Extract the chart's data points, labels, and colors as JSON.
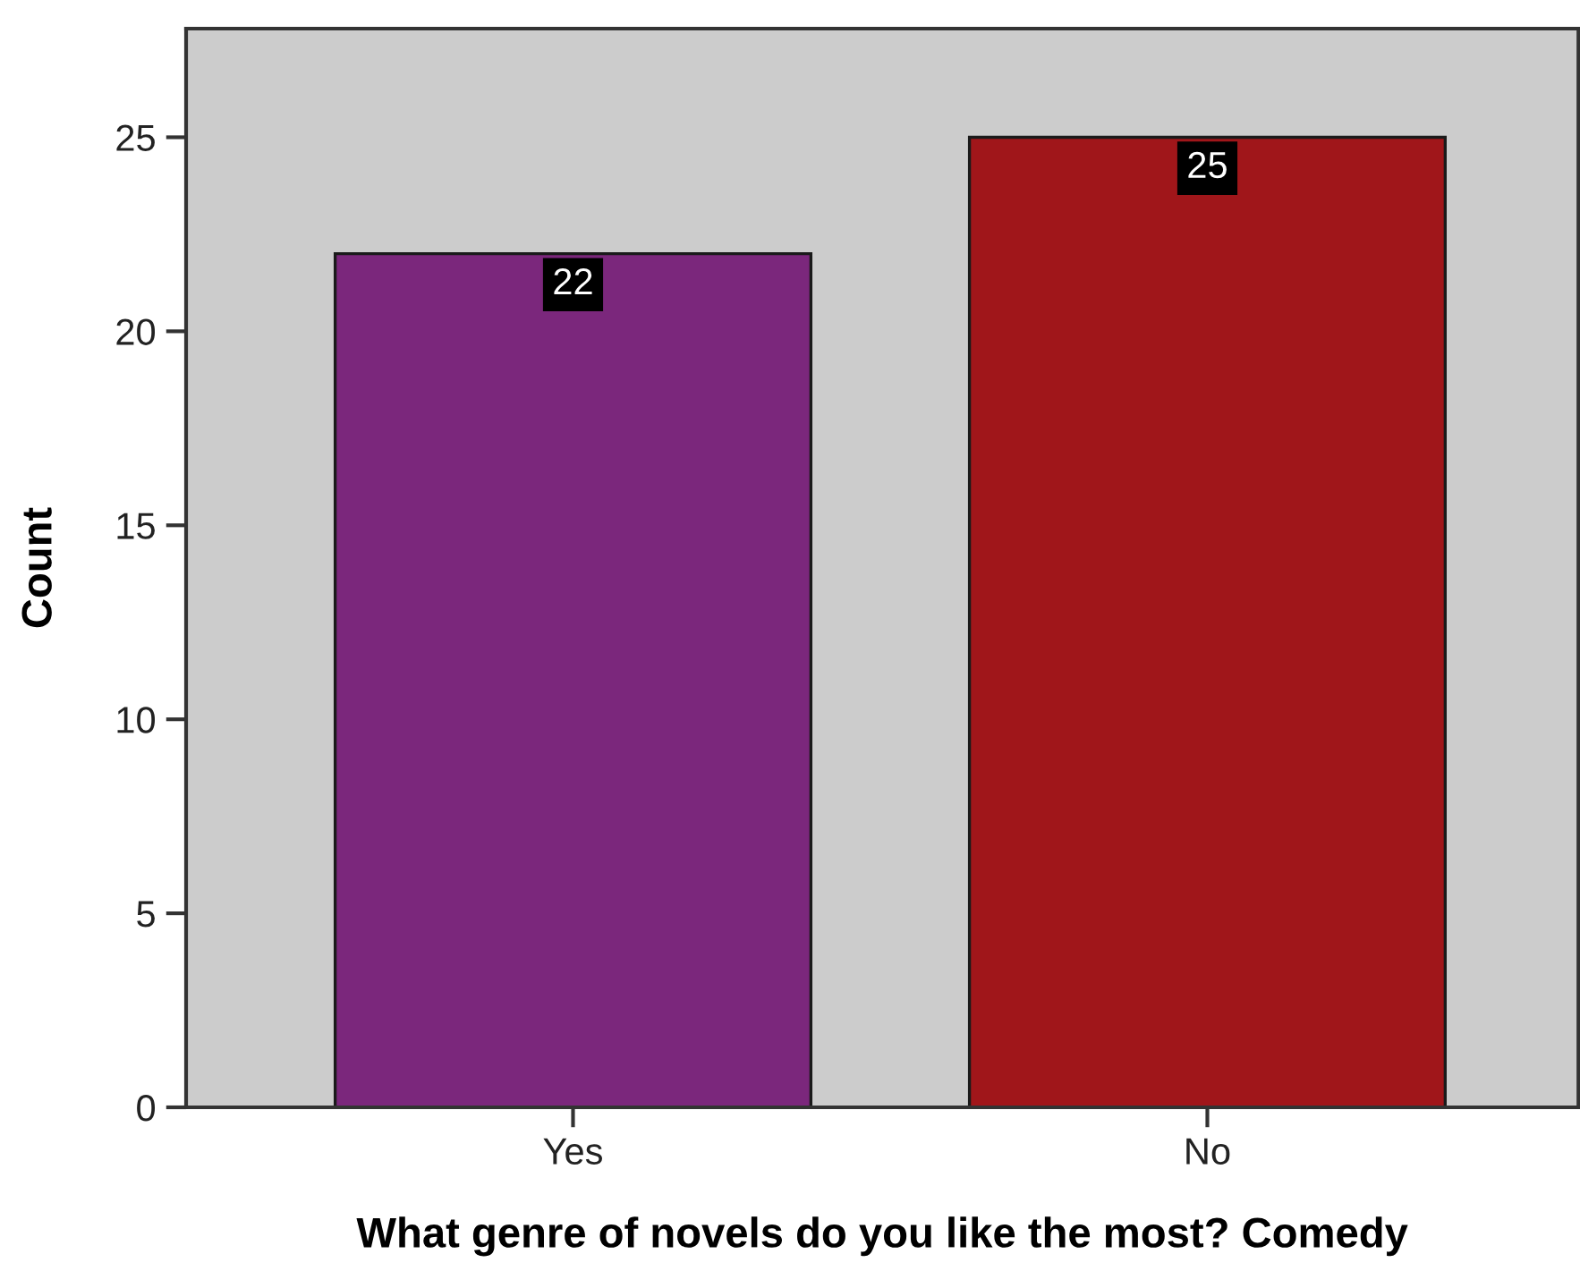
{
  "chart_data": {
    "type": "bar",
    "xlabel": "What genre of novels do you like the most? Comedy",
    "ylabel": "Count",
    "categories": [
      "Yes",
      "No"
    ],
    "values": [
      22,
      25
    ],
    "colors": [
      "#7b277c",
      "#a0161a"
    ],
    "ylim": [
      0,
      27.8
    ],
    "yticks": [
      0,
      5,
      10,
      15,
      20,
      25
    ],
    "grid": false,
    "data_labels": true
  }
}
